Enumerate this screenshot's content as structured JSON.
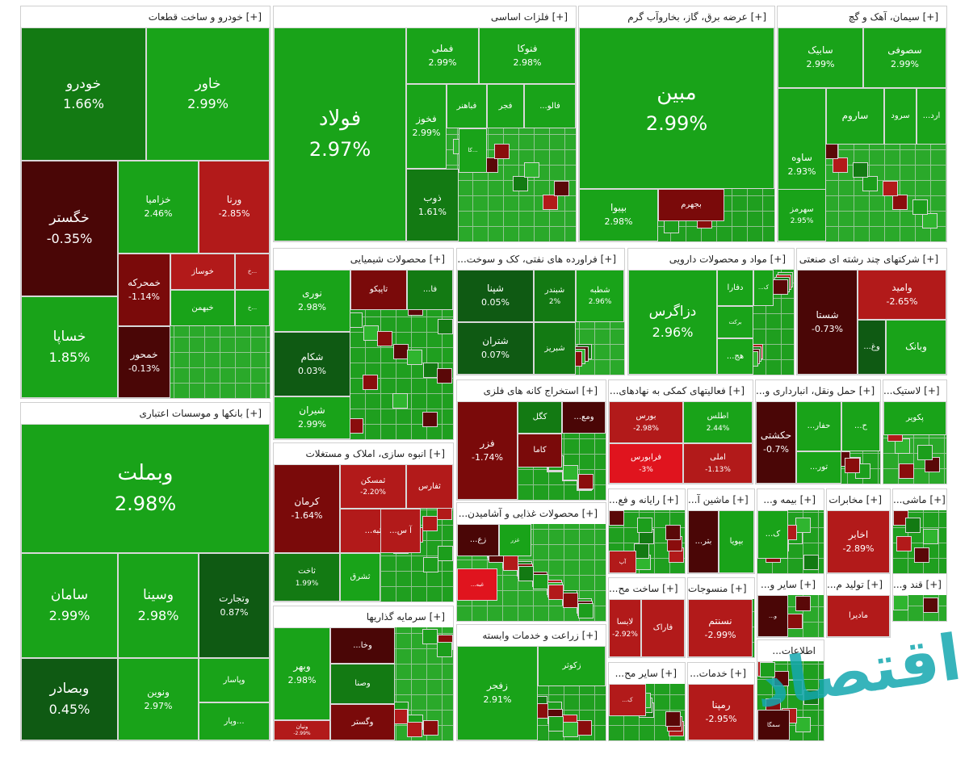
{
  "colors": {
    "green": "#19a319",
    "light_green": "#3dbf1f",
    "bright_green": "#2db81a",
    "dark_green": "#137a13",
    "very_dark_green": "#0f5a13",
    "red": "#b21a1a",
    "dark_red": "#7a0a0a",
    "very_dark_red": "#4a0606",
    "bright_red": "#e0141e",
    "panel": "#ffffff",
    "watermark": "#15a8b0"
  },
  "watermark": {
    "text": "اقتصاد",
    "icon": "brand-logo-icon"
  },
  "sectors": [
    {
      "title": "خودرو و ساخت قطعات [+]",
      "tiles": [
        {
          "name": "خودرو",
          "pct": "1.66%",
          "color": "dark_green"
        },
        {
          "name": "خاور",
          "pct": "2.99%",
          "color": "green"
        },
        {
          "name": "خگستر",
          "pct": "-0.35%",
          "color": "very_dark_red"
        },
        {
          "name": "خزامیا",
          "pct": "2.46%",
          "color": "green"
        },
        {
          "name": "ورنا",
          "pct": "-2.85%",
          "color": "red"
        },
        {
          "name": "خساپا",
          "pct": "1.85%",
          "color": "green"
        },
        {
          "name": "خمحرکه",
          "pct": "-1.14%",
          "color": "dark_red"
        },
        {
          "name": "خوساز",
          "pct": "",
          "color": "red"
        },
        {
          "name": "خ...",
          "pct": "",
          "color": "red"
        },
        {
          "name": "خبهمن",
          "pct": "",
          "color": "green"
        },
        {
          "name": "خ...",
          "pct": "",
          "color": "green"
        },
        {
          "name": "خمحور",
          "pct": "-0.13%",
          "color": "very_dark_red"
        }
      ]
    },
    {
      "title": "بانکها و موسسات اعتباری [+]",
      "tiles": [
        {
          "name": "وبملت",
          "pct": "2.98%",
          "color": "green"
        },
        {
          "name": "سامان",
          "pct": "2.99%",
          "color": "green"
        },
        {
          "name": "وسینا",
          "pct": "2.98%",
          "color": "green"
        },
        {
          "name": "وتجارت",
          "pct": "0.87%",
          "color": "very_dark_green"
        },
        {
          "name": "وبصادر",
          "pct": "0.45%",
          "color": "very_dark_green"
        },
        {
          "name": "ونوین",
          "pct": "2.97%",
          "color": "green"
        },
        {
          "name": "وپاسار",
          "pct": "",
          "color": "green"
        },
        {
          "name": "وپار...",
          "pct": "",
          "color": "green"
        }
      ]
    },
    {
      "title": "فلزات اساسی [+]",
      "tiles": [
        {
          "name": "فولاد",
          "pct": "2.97%",
          "color": "green"
        },
        {
          "name": "فملی",
          "pct": "2.99%",
          "color": "green"
        },
        {
          "name": "فنوکا",
          "pct": "2.98%",
          "color": "green"
        },
        {
          "name": "فخوز",
          "pct": "2.99%",
          "color": "green"
        },
        {
          "name": "فباهنر",
          "pct": "",
          "color": "green"
        },
        {
          "name": "فجر",
          "pct": "",
          "color": "green"
        },
        {
          "name": "...فالو",
          "pct": "",
          "color": "green"
        },
        {
          "name": "کا...",
          "pct": "",
          "color": "green"
        },
        {
          "name": "ذوب",
          "pct": "1.61%",
          "color": "dark_green"
        }
      ]
    },
    {
      "title": "عرضه برق، گاز، بخاروآب گرم [+]",
      "tiles": [
        {
          "name": "مبین",
          "pct": "2.99%",
          "color": "green"
        },
        {
          "name": "بپیوا",
          "pct": "2.98%",
          "color": "green"
        },
        {
          "name": "بجهرم",
          "pct": "",
          "color": "dark_red"
        }
      ]
    },
    {
      "title": "سیمان، آهک و گچ [+]",
      "tiles": [
        {
          "name": "سابیک",
          "pct": "2.99%",
          "color": "green"
        },
        {
          "name": "سصوفی",
          "pct": "2.99%",
          "color": "green"
        },
        {
          "name": "ساوه",
          "pct": "2.93%",
          "color": "green"
        },
        {
          "name": "ساروم",
          "pct": "",
          "color": "green"
        },
        {
          "name": "سرود",
          "pct": "",
          "color": "green"
        },
        {
          "name": "...ارد",
          "pct": "",
          "color": "green"
        },
        {
          "name": "سهرمز",
          "pct": "2.95%",
          "color": "green"
        }
      ]
    },
    {
      "title": "محصولات شیمیایی [+]",
      "tiles": [
        {
          "name": "نوری",
          "pct": "2.98%",
          "color": "green"
        },
        {
          "name": "تاپیکو",
          "pct": "",
          "color": "dark_red"
        },
        {
          "name": "...فا",
          "pct": "",
          "color": "dark_green"
        },
        {
          "name": "شکام",
          "pct": "0.03%",
          "color": "very_dark_green"
        },
        {
          "name": "شیران",
          "pct": "2.99%",
          "color": "green"
        }
      ]
    },
    {
      "title": "...فراورده های نفتی، کک و سوخت [+]",
      "tiles": [
        {
          "name": "شپنا",
          "pct": "0.05%",
          "color": "very_dark_green"
        },
        {
          "name": "شبندر",
          "pct": "2%",
          "color": "dark_green"
        },
        {
          "name": "شطبه",
          "pct": "2.96%",
          "color": "green"
        },
        {
          "name": "شتران",
          "pct": "0.07%",
          "color": "very_dark_green"
        },
        {
          "name": "شبریز",
          "pct": "",
          "color": "dark_green"
        }
      ]
    },
    {
      "title": "مواد و محصولات دارویی [+]",
      "tiles": [
        {
          "name": "دزاگرس",
          "pct": "2.96%",
          "color": "green"
        },
        {
          "name": "دفارا",
          "pct": "",
          "color": "green"
        },
        {
          "name": "...ک",
          "pct": "",
          "color": "green"
        },
        {
          "name": "برکت",
          "pct": "",
          "color": "green"
        },
        {
          "name": "...هج",
          "pct": "",
          "color": "green"
        }
      ]
    },
    {
      "title": "شرکتهای چند رشته ای صنعتی [+]",
      "tiles": [
        {
          "name": "شستا",
          "pct": "-0.73%",
          "color": "very_dark_red"
        },
        {
          "name": "وامید",
          "pct": "-2.65%",
          "color": "red"
        },
        {
          "name": "...وغ",
          "pct": "",
          "color": "very_dark_green"
        },
        {
          "name": "وبانک",
          "pct": "",
          "color": "green"
        }
      ]
    },
    {
      "title": "استخراج کانه های فلزی [+]",
      "tiles": [
        {
          "name": "فزر",
          "pct": "-1.74%",
          "color": "dark_red"
        },
        {
          "name": "کگل",
          "pct": "",
          "color": "dark_green"
        },
        {
          "name": "...ومع",
          "pct": "",
          "color": "very_dark_red"
        },
        {
          "name": "کاما",
          "pct": "",
          "color": "dark_red"
        }
      ]
    },
    {
      "title": "...فعالیتهای کمکی به نهادهای [+]",
      "tiles": [
        {
          "name": "بورس",
          "pct": "-2.98%",
          "color": "red"
        },
        {
          "name": "اطلس",
          "pct": "2.44%",
          "color": "green"
        },
        {
          "name": "فرابورس",
          "pct": "-3%",
          "color": "bright_red"
        },
        {
          "name": "املی",
          "pct": "-1.13%",
          "color": "red"
        }
      ]
    },
    {
      "title": "...حمل ونقل، انبارداری و [+]",
      "tiles": [
        {
          "name": "حکشتی",
          "pct": "-0.7%",
          "color": "very_dark_red"
        },
        {
          "name": "...حفار",
          "pct": "",
          "color": "green"
        },
        {
          "name": "...ح",
          "pct": "",
          "color": "green"
        },
        {
          "name": "...تور",
          "pct": "",
          "color": "green"
        }
      ]
    },
    {
      "title": "...لاستیک [+]",
      "tiles": [
        {
          "name": "پکویر",
          "pct": "",
          "color": "green"
        }
      ]
    },
    {
      "title": "انبوه سازی، املاک و مستغلات [+]",
      "tiles": [
        {
          "name": "کرمان",
          "pct": "-1.64%",
          "color": "dark_red"
        },
        {
          "name": "ثمسکن",
          "pct": "-2.20%",
          "color": "red"
        },
        {
          "name": "ثفارس",
          "pct": "",
          "color": "red"
        },
        {
          "name": "...ثبه",
          "pct": "",
          "color": "red"
        },
        {
          "name": "...آ س",
          "pct": "",
          "color": "red"
        },
        {
          "name": "ثاخت",
          "pct": "1.99%",
          "color": "dark_green"
        },
        {
          "name": "ثشرق",
          "pct": "",
          "color": "green"
        }
      ]
    },
    {
      "title": "...محصولات غذایی و آشامیدن [+]",
      "tiles": [
        {
          "name": "...زع",
          "pct": "",
          "color": "very_dark_red"
        },
        {
          "name": "غزر",
          "pct": "",
          "color": "green"
        },
        {
          "name": "...غبه",
          "pct": "",
          "color": "bright_red"
        }
      ]
    },
    {
      "title": "...رایانه و فع [+]",
      "tiles": [
        {
          "name": "آپ",
          "pct": "",
          "color": "red"
        }
      ]
    },
    {
      "title": "...ماشین آ [+]",
      "tiles": [
        {
          "name": "...بتر",
          "pct": "",
          "color": "very_dark_red"
        },
        {
          "name": "بپویا",
          "pct": "",
          "color": "green"
        }
      ]
    },
    {
      "title": "...بیمه و [+]",
      "tiles": [
        {
          "name": "...ک",
          "pct": "",
          "color": "green"
        }
      ]
    },
    {
      "title": "مخابرات [+]",
      "tiles": [
        {
          "name": "اخابر",
          "pct": "-2.89%",
          "color": "red"
        }
      ]
    },
    {
      "title": "...ماشی [+]",
      "tiles": []
    },
    {
      "title": "سرمایه گذاریها [+]",
      "tiles": [
        {
          "name": "...وخا",
          "pct": "",
          "color": "very_dark_red"
        },
        {
          "name": "وصنا",
          "pct": "",
          "color": "dark_green"
        },
        {
          "name": "وبهر",
          "pct": "2.98%",
          "color": "green"
        },
        {
          "name": "ونیان",
          "pct": "-2.99%",
          "color": "red"
        },
        {
          "name": "وگستر",
          "pct": "",
          "color": "dark_red"
        }
      ]
    },
    {
      "title": "زراعت و خدمات وابسته [+]",
      "tiles": [
        {
          "name": "زفجر",
          "pct": "2.91%",
          "color": "green"
        },
        {
          "name": "زکوثر",
          "pct": "",
          "color": "green"
        }
      ]
    },
    {
      "title": "...ساخت مح [+]",
      "tiles": [
        {
          "name": "لابسا",
          "pct": "-2.92%",
          "color": "red"
        },
        {
          "name": "فاراک",
          "pct": "",
          "color": "red"
        }
      ]
    },
    {
      "title": "منسوجات [+]",
      "tiles": [
        {
          "name": "نسنتم",
          "pct": "-2.99%",
          "color": "red"
        }
      ]
    },
    {
      "title": "...سایر و [+]",
      "tiles": [
        {
          "name": "...و",
          "pct": "",
          "color": "very_dark_red"
        }
      ]
    },
    {
      "title": "...تولید م [+]",
      "tiles": [
        {
          "name": "مادیرا",
          "pct": "",
          "color": "red"
        }
      ]
    },
    {
      "title": "...قند و [+]",
      "tiles": []
    },
    {
      "title": "...سایر مح [+]",
      "tiles": [
        {
          "name": "...ک",
          "pct": "",
          "color": "red"
        }
      ]
    },
    {
      "title": "...خدمات [+]",
      "tiles": [
        {
          "name": "رمپنا",
          "pct": "-2.95%",
          "color": "red"
        }
      ]
    },
    {
      "title": "...اطلاعات",
      "tiles": [
        {
          "name": "سمگا",
          "pct": "",
          "color": "very_dark_red"
        }
      ]
    }
  ]
}
